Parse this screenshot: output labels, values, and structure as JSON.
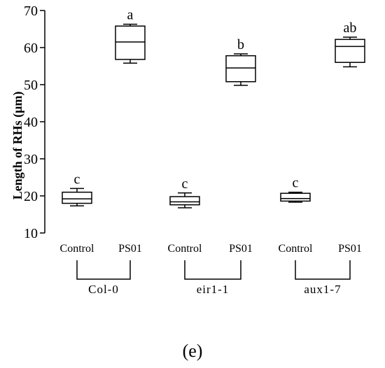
{
  "chart_data": {
    "type": "box",
    "ylabel": "Length of RHs (μm)",
    "xlabel": "",
    "ylim": [
      10,
      70
    ],
    "yticks": [
      10,
      20,
      30,
      40,
      50,
      60,
      70
    ],
    "categories": [
      "Control",
      "PS01",
      "Control",
      "PS01",
      "Control",
      "PS01"
    ],
    "groups": [
      {
        "label": "Col-0",
        "members": [
          0,
          1
        ]
      },
      {
        "label": "eir1-1",
        "members": [
          2,
          3
        ]
      },
      {
        "label": "aux1-7",
        "members": [
          4,
          5
        ]
      }
    ],
    "boxes": [
      {
        "category": "Control",
        "group": "Col-0",
        "min": 17.3,
        "q1": 18.0,
        "median": 19.2,
        "q3": 21.0,
        "max": 22.0,
        "letter": "c"
      },
      {
        "category": "PS01",
        "group": "Col-0",
        "min": 55.8,
        "q1": 56.8,
        "median": 61.5,
        "q3": 65.8,
        "max": 66.3,
        "letter": "a"
      },
      {
        "category": "Control",
        "group": "eir1-1",
        "min": 16.8,
        "q1": 17.6,
        "median": 18.4,
        "q3": 19.8,
        "max": 20.8,
        "letter": "c"
      },
      {
        "category": "PS01",
        "group": "eir1-1",
        "min": 49.8,
        "q1": 50.8,
        "median": 54.5,
        "q3": 57.8,
        "max": 58.3,
        "letter": "b"
      },
      {
        "category": "Control",
        "group": "aux1-7",
        "min": 18.3,
        "q1": 18.6,
        "median": 19.3,
        "q3": 20.7,
        "max": 21.0,
        "letter": "c"
      },
      {
        "category": "PS01",
        "group": "aux1-7",
        "min": 54.8,
        "q1": 56.0,
        "median": 60.3,
        "q3": 62.2,
        "max": 62.8,
        "letter": "ab"
      }
    ],
    "grid": false,
    "legend": "none"
  },
  "panel_label": "(e)"
}
